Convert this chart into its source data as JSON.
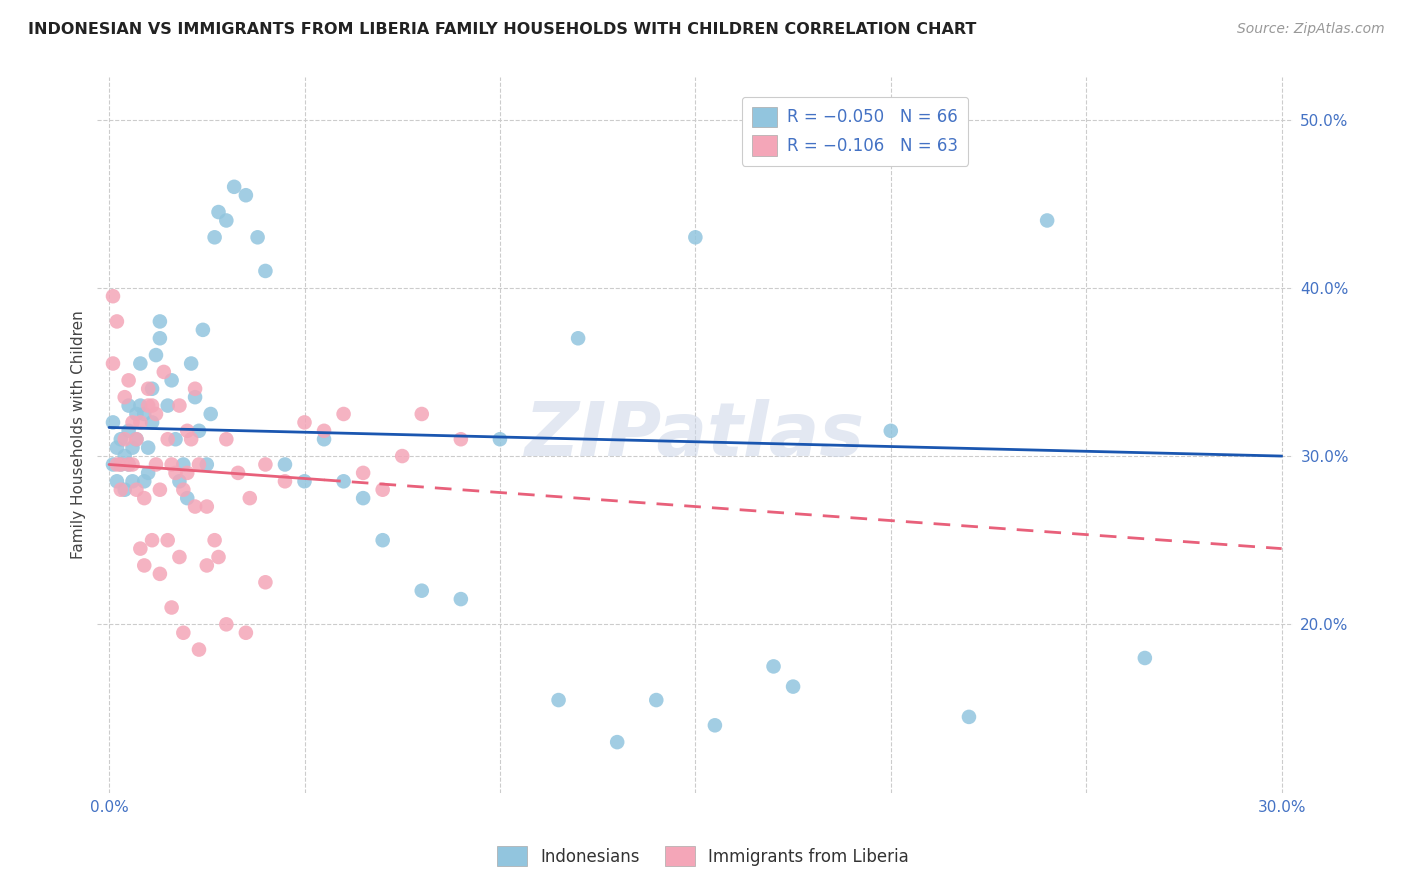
{
  "title": "INDONESIAN VS IMMIGRANTS FROM LIBERIA FAMILY HOUSEHOLDS WITH CHILDREN CORRELATION CHART",
  "source": "Source: ZipAtlas.com",
  "ylabel": "Family Households with Children",
  "color_blue": "#92c5de",
  "color_pink": "#f4a6b8",
  "line_blue": "#1a56b0",
  "line_pink": "#e8607a",
  "watermark": "ZIPatlas",
  "indonesian_x": [
    0.001,
    0.001,
    0.002,
    0.002,
    0.003,
    0.003,
    0.004,
    0.004,
    0.005,
    0.005,
    0.005,
    0.006,
    0.006,
    0.007,
    0.007,
    0.008,
    0.008,
    0.009,
    0.009,
    0.01,
    0.01,
    0.011,
    0.011,
    0.012,
    0.013,
    0.013,
    0.015,
    0.016,
    0.017,
    0.018,
    0.019,
    0.02,
    0.021,
    0.022,
    0.023,
    0.024,
    0.025,
    0.026,
    0.027,
    0.028,
    0.03,
    0.032,
    0.035,
    0.038,
    0.04,
    0.045,
    0.05,
    0.055,
    0.06,
    0.065,
    0.07,
    0.08,
    0.09,
    0.1,
    0.12,
    0.14,
    0.15,
    0.17,
    0.2,
    0.22,
    0.24,
    0.265,
    0.13,
    0.155,
    0.115,
    0.175
  ],
  "indonesian_y": [
    0.295,
    0.32,
    0.305,
    0.285,
    0.31,
    0.295,
    0.3,
    0.28,
    0.315,
    0.295,
    0.33,
    0.305,
    0.285,
    0.31,
    0.325,
    0.355,
    0.33,
    0.325,
    0.285,
    0.305,
    0.29,
    0.34,
    0.32,
    0.36,
    0.38,
    0.37,
    0.33,
    0.345,
    0.31,
    0.285,
    0.295,
    0.275,
    0.355,
    0.335,
    0.315,
    0.375,
    0.295,
    0.325,
    0.43,
    0.445,
    0.44,
    0.46,
    0.455,
    0.43,
    0.41,
    0.295,
    0.285,
    0.31,
    0.285,
    0.275,
    0.25,
    0.22,
    0.215,
    0.31,
    0.37,
    0.155,
    0.43,
    0.175,
    0.315,
    0.145,
    0.44,
    0.18,
    0.13,
    0.14,
    0.155,
    0.163
  ],
  "liberia_x": [
    0.001,
    0.001,
    0.002,
    0.002,
    0.003,
    0.003,
    0.004,
    0.004,
    0.005,
    0.005,
    0.006,
    0.006,
    0.007,
    0.007,
    0.008,
    0.009,
    0.01,
    0.011,
    0.012,
    0.013,
    0.014,
    0.015,
    0.016,
    0.017,
    0.018,
    0.019,
    0.02,
    0.021,
    0.022,
    0.023,
    0.025,
    0.027,
    0.03,
    0.033,
    0.036,
    0.04,
    0.045,
    0.05,
    0.055,
    0.06,
    0.065,
    0.07,
    0.075,
    0.08,
    0.09,
    0.01,
    0.012,
    0.015,
    0.018,
    0.02,
    0.022,
    0.025,
    0.028,
    0.03,
    0.035,
    0.04,
    0.008,
    0.009,
    0.011,
    0.013,
    0.016,
    0.019,
    0.023
  ],
  "liberia_y": [
    0.395,
    0.355,
    0.38,
    0.295,
    0.295,
    0.28,
    0.335,
    0.31,
    0.345,
    0.295,
    0.295,
    0.32,
    0.31,
    0.28,
    0.32,
    0.275,
    0.34,
    0.33,
    0.325,
    0.28,
    0.35,
    0.31,
    0.295,
    0.29,
    0.33,
    0.28,
    0.315,
    0.31,
    0.34,
    0.295,
    0.27,
    0.25,
    0.31,
    0.29,
    0.275,
    0.295,
    0.285,
    0.32,
    0.315,
    0.325,
    0.29,
    0.28,
    0.3,
    0.325,
    0.31,
    0.33,
    0.295,
    0.25,
    0.24,
    0.29,
    0.27,
    0.235,
    0.24,
    0.2,
    0.195,
    0.225,
    0.245,
    0.235,
    0.25,
    0.23,
    0.21,
    0.195,
    0.185
  ],
  "xlim_min": 0.0,
  "xlim_max": 0.3,
  "ylim_min": 0.1,
  "ylim_max": 0.525,
  "ytick_values": [
    0.5,
    0.4,
    0.3,
    0.2
  ],
  "ytick_labels": [
    "50.0%",
    "40.0%",
    "30.0%",
    "20.0%"
  ],
  "xtick_values": [
    0.0,
    0.05,
    0.1,
    0.15,
    0.2,
    0.25,
    0.3
  ],
  "xtick_labels": [
    "0.0%",
    "",
    "",
    "",
    "",
    "",
    "30.0%"
  ],
  "legend1_text": "R = −0.050   N = 66",
  "legend2_text": "R = −0.106   N = 63",
  "bottom_legend1": "Indonesians",
  "bottom_legend2": "Immigrants from Liberia"
}
